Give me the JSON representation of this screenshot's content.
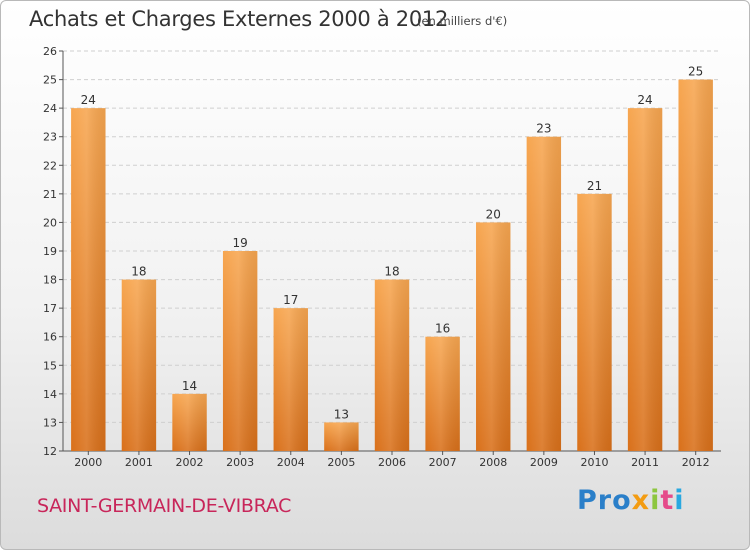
{
  "header": {
    "title": "Achats et Charges Externes 2000 à 2012",
    "subtitle": "(en milliers d'€)"
  },
  "footer": {
    "place": "SAINT-GERMAIN-DE-VIBRAC",
    "logo": [
      "Pro",
      "x",
      "i",
      "t",
      "i"
    ]
  },
  "colors": {
    "bar_top": "#f7a650",
    "bar_bottom": "#d9701a",
    "title": "#333333",
    "place": "#c8265a"
  },
  "chart_data": {
    "type": "bar",
    "title": "Achats et Charges Externes 2000 à 2012",
    "subtitle": "(en milliers d'€)",
    "categories": [
      "2000",
      "2001",
      "2002",
      "2003",
      "2004",
      "2005",
      "2006",
      "2007",
      "2008",
      "2009",
      "2010",
      "2011",
      "2012"
    ],
    "values": [
      24,
      18,
      14,
      19,
      17,
      13,
      18,
      16,
      20,
      23,
      21,
      24,
      25
    ],
    "ylim": [
      12,
      26
    ],
    "yticks": [
      12,
      13,
      14,
      15,
      16,
      17,
      18,
      19,
      20,
      21,
      22,
      23,
      24,
      25,
      26
    ],
    "grid": true,
    "legend": "none"
  }
}
